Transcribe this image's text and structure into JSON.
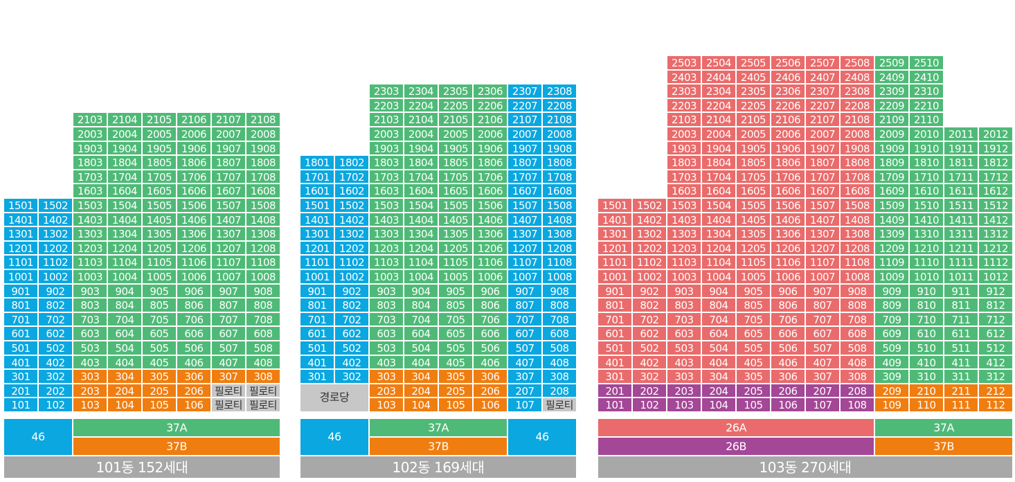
{
  "colors": {
    "blue": "#0aa7e0",
    "green": "#4fba77",
    "orange": "#f07d10",
    "red": "#ea6b6b",
    "purple": "#a34796",
    "gray": "#c7c7c7",
    "title_gray": "#a8a8a8"
  },
  "special_labels": {
    "piloti": "필로티",
    "senior_center": "경로당"
  },
  "buildings": [
    {
      "id": "101",
      "title": "101동 152세대",
      "floors": 21,
      "grid_rows": [
        [
          "",
          "",
          "2103",
          "2104",
          "2105",
          "2106",
          "2107",
          "2108"
        ],
        [
          "",
          "",
          "2003",
          "2004",
          "2005",
          "2006",
          "2007",
          "2008"
        ],
        [
          "",
          "",
          "1903",
          "1904",
          "1905",
          "1906",
          "1907",
          "1908"
        ],
        [
          "",
          "",
          "1803",
          "1804",
          "1805",
          "1806",
          "1807",
          "1808"
        ],
        [
          "",
          "",
          "1703",
          "1704",
          "1705",
          "1706",
          "1707",
          "1708"
        ],
        [
          "",
          "",
          "1603",
          "1604",
          "1605",
          "1606",
          "1607",
          "1608"
        ],
        [
          "1501",
          "1502",
          "1503",
          "1504",
          "1505",
          "1506",
          "1507",
          "1508"
        ],
        [
          "1401",
          "1402",
          "1403",
          "1404",
          "1405",
          "1406",
          "1407",
          "1408"
        ],
        [
          "1301",
          "1302",
          "1303",
          "1304",
          "1305",
          "1306",
          "1307",
          "1308"
        ],
        [
          "1201",
          "1202",
          "1203",
          "1204",
          "1205",
          "1206",
          "1207",
          "1208"
        ],
        [
          "1101",
          "1102",
          "1103",
          "1104",
          "1105",
          "1106",
          "1107",
          "1108"
        ],
        [
          "1001",
          "1002",
          "1003",
          "1004",
          "1005",
          "1006",
          "1007",
          "1008"
        ],
        [
          "901",
          "902",
          "903",
          "904",
          "905",
          "906",
          "907",
          "908"
        ],
        [
          "801",
          "802",
          "803",
          "804",
          "805",
          "806",
          "807",
          "808"
        ],
        [
          "701",
          "702",
          "703",
          "704",
          "705",
          "706",
          "707",
          "708"
        ],
        [
          "601",
          "602",
          "603",
          "604",
          "605",
          "606",
          "607",
          "608"
        ],
        [
          "501",
          "502",
          "503",
          "504",
          "505",
          "506",
          "507",
          "508"
        ],
        [
          "401",
          "402",
          "403",
          "404",
          "405",
          "406",
          "407",
          "408"
        ],
        [
          "301",
          "302",
          "303",
          "304",
          "305",
          "306",
          "307",
          "308"
        ],
        [
          "201",
          "202",
          "203",
          "204",
          "205",
          "206",
          "필로티",
          "필로티"
        ],
        [
          "101",
          "102",
          "103",
          "104",
          "105",
          "106",
          "필로티",
          "필로티"
        ]
      ],
      "legend": [
        {
          "label": "46",
          "color": "blue"
        },
        {
          "label": "37A",
          "color": "green"
        },
        {
          "label": "37B",
          "color": "orange"
        }
      ]
    },
    {
      "id": "102",
      "title": "102동 169세대",
      "floors": 23,
      "grid_rows": [
        [
          "",
          "",
          "2303",
          "2304",
          "2305",
          "2306",
          "2307",
          "2308"
        ],
        [
          "",
          "",
          "2203",
          "2204",
          "2205",
          "2206",
          "2207",
          "2208"
        ],
        [
          "",
          "",
          "2103",
          "2104",
          "2105",
          "2106",
          "2107",
          "2108"
        ],
        [
          "",
          "",
          "2003",
          "2004",
          "2005",
          "2006",
          "2007",
          "2008"
        ],
        [
          "",
          "",
          "1903",
          "1904",
          "1905",
          "1906",
          "1907",
          "1908"
        ],
        [
          "1801",
          "1802",
          "1803",
          "1804",
          "1805",
          "1806",
          "1807",
          "1808"
        ],
        [
          "1701",
          "1702",
          "1703",
          "1704",
          "1705",
          "1706",
          "1707",
          "1708"
        ],
        [
          "1601",
          "1602",
          "1603",
          "1604",
          "1605",
          "1606",
          "1607",
          "1608"
        ],
        [
          "1501",
          "1502",
          "1503",
          "1504",
          "1505",
          "1506",
          "1507",
          "1508"
        ],
        [
          "1401",
          "1402",
          "1403",
          "1404",
          "1405",
          "1406",
          "1407",
          "1408"
        ],
        [
          "1301",
          "1302",
          "1303",
          "1304",
          "1305",
          "1306",
          "1307",
          "1308"
        ],
        [
          "1201",
          "1202",
          "1203",
          "1204",
          "1205",
          "1206",
          "1207",
          "1208"
        ],
        [
          "1101",
          "1102",
          "1103",
          "1104",
          "1105",
          "1106",
          "1107",
          "1108"
        ],
        [
          "1001",
          "1002",
          "1003",
          "1004",
          "1005",
          "1006",
          "1007",
          "1008"
        ],
        [
          "901",
          "902",
          "903",
          "904",
          "905",
          "906",
          "907",
          "908"
        ],
        [
          "801",
          "802",
          "803",
          "804",
          "805",
          "806",
          "807",
          "808"
        ],
        [
          "701",
          "702",
          "703",
          "704",
          "705",
          "706",
          "707",
          "708"
        ],
        [
          "601",
          "602",
          "603",
          "604",
          "605",
          "606",
          "607",
          "608"
        ],
        [
          "501",
          "502",
          "503",
          "504",
          "505",
          "506",
          "507",
          "508"
        ],
        [
          "401",
          "402",
          "403",
          "404",
          "405",
          "406",
          "407",
          "408"
        ],
        [
          "301",
          "302",
          "303",
          "304",
          "305",
          "306",
          "307",
          "308"
        ],
        [
          "경로당",
          "경로당",
          "203",
          "204",
          "205",
          "206",
          "207",
          "208"
        ],
        [
          "경로당",
          "경로당",
          "103",
          "104",
          "105",
          "106",
          "107",
          "필로티"
        ]
      ],
      "legend": [
        {
          "label": "46",
          "color": "blue"
        },
        {
          "label": "37A",
          "color": "green"
        },
        {
          "label": "37B",
          "color": "orange"
        },
        {
          "label": "46",
          "color": "blue"
        }
      ]
    },
    {
      "id": "103",
      "title": "103동 270세대",
      "floors": 25,
      "grid_rows": [
        [
          "",
          "",
          "2503",
          "2504",
          "2505",
          "2506",
          "2507",
          "2508",
          "2509",
          "2510",
          "",
          ""
        ],
        [
          "",
          "",
          "2403",
          "2404",
          "2405",
          "2406",
          "2407",
          "2408",
          "2409",
          "2410",
          "",
          ""
        ],
        [
          "",
          "",
          "2303",
          "2304",
          "2305",
          "2306",
          "2307",
          "2308",
          "2309",
          "2310",
          "",
          ""
        ],
        [
          "",
          "",
          "2203",
          "2204",
          "2205",
          "2206",
          "2207",
          "2208",
          "2209",
          "2210",
          "",
          ""
        ],
        [
          "",
          "",
          "2103",
          "2104",
          "2105",
          "2106",
          "2107",
          "2108",
          "2109",
          "2110",
          "",
          ""
        ],
        [
          "",
          "",
          "2003",
          "2004",
          "2005",
          "2006",
          "2007",
          "2008",
          "2009",
          "2010",
          "2011",
          "2012"
        ],
        [
          "",
          "",
          "1903",
          "1904",
          "1905",
          "1906",
          "1907",
          "1908",
          "1909",
          "1910",
          "1911",
          "1912"
        ],
        [
          "",
          "",
          "1803",
          "1804",
          "1805",
          "1806",
          "1807",
          "1808",
          "1809",
          "1810",
          "1811",
          "1812"
        ],
        [
          "",
          "",
          "1703",
          "1704",
          "1705",
          "1706",
          "1707",
          "1708",
          "1709",
          "1710",
          "1711",
          "1712"
        ],
        [
          "",
          "",
          "1603",
          "1604",
          "1605",
          "1606",
          "1607",
          "1608",
          "1609",
          "1610",
          "1611",
          "1612"
        ],
        [
          "1501",
          "1502",
          "1503",
          "1504",
          "1505",
          "1506",
          "1507",
          "1508",
          "1509",
          "1510",
          "1511",
          "1512"
        ],
        [
          "1401",
          "1402",
          "1403",
          "1404",
          "1405",
          "1406",
          "1407",
          "1408",
          "1409",
          "1410",
          "1411",
          "1412"
        ],
        [
          "1301",
          "1302",
          "1303",
          "1304",
          "1305",
          "1306",
          "1307",
          "1308",
          "1309",
          "1310",
          "1311",
          "1312"
        ],
        [
          "1201",
          "1202",
          "1203",
          "1204",
          "1205",
          "1206",
          "1207",
          "1208",
          "1209",
          "1210",
          "1211",
          "1212"
        ],
        [
          "1101",
          "1102",
          "1103",
          "1104",
          "1105",
          "1106",
          "1107",
          "1108",
          "1109",
          "1110",
          "1111",
          "1112"
        ],
        [
          "1001",
          "1002",
          "1003",
          "1004",
          "1005",
          "1006",
          "1007",
          "1008",
          "1009",
          "1010",
          "1011",
          "1012"
        ],
        [
          "901",
          "902",
          "903",
          "904",
          "905",
          "906",
          "907",
          "908",
          "909",
          "910",
          "911",
          "912"
        ],
        [
          "801",
          "802",
          "803",
          "804",
          "805",
          "806",
          "807",
          "808",
          "809",
          "810",
          "811",
          "812"
        ],
        [
          "701",
          "702",
          "703",
          "704",
          "705",
          "706",
          "707",
          "708",
          "709",
          "710",
          "711",
          "712"
        ],
        [
          "601",
          "602",
          "603",
          "604",
          "605",
          "606",
          "607",
          "608",
          "609",
          "610",
          "611",
          "612"
        ],
        [
          "501",
          "502",
          "503",
          "504",
          "505",
          "506",
          "507",
          "508",
          "509",
          "510",
          "511",
          "512"
        ],
        [
          "401",
          "402",
          "403",
          "404",
          "405",
          "406",
          "407",
          "408",
          "409",
          "410",
          "411",
          "412"
        ],
        [
          "301",
          "302",
          "303",
          "304",
          "305",
          "306",
          "307",
          "308",
          "309",
          "310",
          "311",
          "312"
        ],
        [
          "201",
          "202",
          "203",
          "204",
          "205",
          "206",
          "207",
          "208",
          "209",
          "210",
          "211",
          "212"
        ],
        [
          "101",
          "102",
          "103",
          "104",
          "105",
          "106",
          "107",
          "108",
          "109",
          "110",
          "111",
          "112"
        ]
      ],
      "legend": [
        {
          "label": "26A",
          "color": "red"
        },
        {
          "label": "37A",
          "color": "green"
        },
        {
          "label": "26B",
          "color": "purple"
        },
        {
          "label": "37B",
          "color": "orange"
        }
      ]
    }
  ]
}
